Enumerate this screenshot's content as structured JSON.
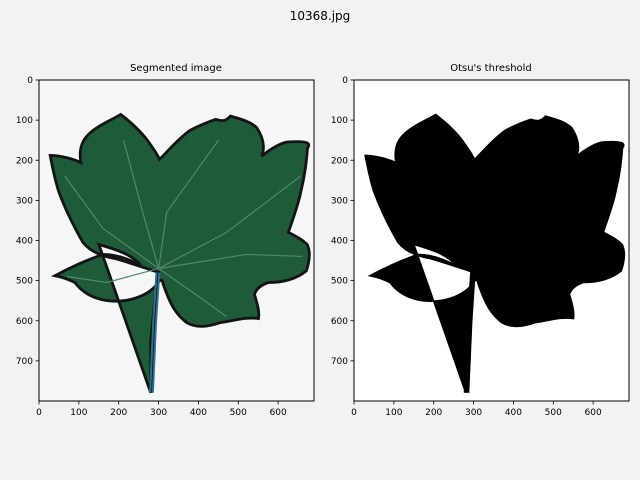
{
  "figure": {
    "suptitle": "10368.jpg",
    "background": "#f2f2f2"
  },
  "panels": [
    {
      "title": "Segmented image",
      "x_ticks": [
        "0",
        "100",
        "200",
        "300",
        "400",
        "500",
        "600"
      ],
      "y_ticks": [
        "0",
        "100",
        "200",
        "300",
        "400",
        "500",
        "600",
        "700"
      ],
      "xlim": [
        0,
        690
      ],
      "ylim": [
        800,
        0
      ],
      "background": "#f4f7f6",
      "leaf_fill": "#1e5b38",
      "vein_color": "#4f8a6c",
      "outline_color": "#141414",
      "petiole_color": "#2f6f8f"
    },
    {
      "title": "Otsu's threshold",
      "x_ticks": [
        "0",
        "100",
        "200",
        "300",
        "400",
        "500",
        "600"
      ],
      "y_ticks": [
        "0",
        "100",
        "200",
        "300",
        "400",
        "500",
        "600",
        "700"
      ],
      "xlim": [
        0,
        690
      ],
      "ylim": [
        800,
        0
      ],
      "background": "#ffffff",
      "leaf_fill": "#000000"
    }
  ]
}
